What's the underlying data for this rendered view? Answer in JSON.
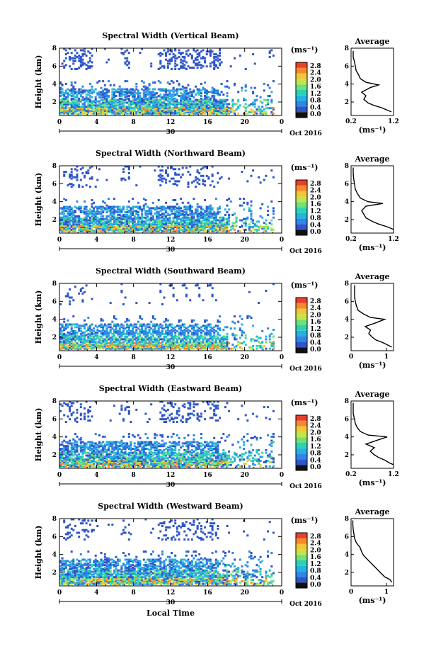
{
  "figure": {
    "ylabel": "Height (km)",
    "xlabel": "Local Time",
    "date_label": "Oct 2016",
    "day_label": "30",
    "colorbar_unit": "(ms⁻¹)",
    "avg_unit": "(ms⁻¹)",
    "avg_title": "Average"
  },
  "chart_data": [
    {
      "type": "heatmap",
      "title": "Spectral Width (Vertical Beam)",
      "xlim": [
        0,
        24
      ],
      "ylim": [
        0.5,
        8
      ],
      "xticks": [
        "0",
        "4",
        "8",
        "12",
        "16",
        "20",
        "0"
      ],
      "yticks": [
        "2",
        "4",
        "6",
        "8"
      ],
      "colorbar_ticks": [
        "2.8",
        "2.4",
        "2.0",
        "1.6",
        "1.2",
        "0.8",
        "0.4",
        "0.0"
      ],
      "average": {
        "xlim": [
          0.2,
          1.2
        ],
        "xticks": [
          "0.2",
          "1.2"
        ],
        "yticks": [
          "2",
          "4",
          "6",
          "8"
        ],
        "profile": [
          [
            1.15,
            0.9
          ],
          [
            1.05,
            1.1
          ],
          [
            0.9,
            1.4
          ],
          [
            0.75,
            1.6
          ],
          [
            0.6,
            1.9
          ],
          [
            0.5,
            2.3
          ],
          [
            0.55,
            2.7
          ],
          [
            0.45,
            3.1
          ],
          [
            0.65,
            3.6
          ],
          [
            0.85,
            3.9
          ],
          [
            0.55,
            4.2
          ],
          [
            0.42,
            4.6
          ],
          [
            0.38,
            5.0
          ],
          [
            0.32,
            5.5
          ],
          [
            0.3,
            6.0
          ],
          [
            0.28,
            6.5
          ],
          [
            0.25,
            7.0
          ],
          [
            0.25,
            7.7
          ]
        ]
      },
      "seed": 11,
      "upper_density": 0.55
    },
    {
      "type": "heatmap",
      "title": "Spectral Width (Northward Beam)",
      "xlim": [
        0,
        24
      ],
      "ylim": [
        0.5,
        8
      ],
      "xticks": [
        "0",
        "4",
        "8",
        "12",
        "16",
        "20",
        "0"
      ],
      "yticks": [
        "2",
        "4",
        "6",
        "8"
      ],
      "colorbar_ticks": [
        "2.8",
        "2.4",
        "2.0",
        "1.6",
        "1.2",
        "0.8",
        "0.4",
        "0.0"
      ],
      "average": {
        "xlim": [
          0.2,
          1.2
        ],
        "xticks": [
          "0.2",
          "1.2"
        ],
        "yticks": [
          "2",
          "4",
          "6",
          "8"
        ],
        "profile": [
          [
            1.2,
            0.9
          ],
          [
            1.05,
            1.2
          ],
          [
            0.85,
            1.5
          ],
          [
            0.7,
            1.8
          ],
          [
            0.55,
            2.2
          ],
          [
            0.5,
            2.6
          ],
          [
            0.45,
            3.0
          ],
          [
            0.55,
            3.5
          ],
          [
            0.95,
            3.8
          ],
          [
            0.6,
            4.0
          ],
          [
            0.42,
            4.4
          ],
          [
            0.35,
            4.9
          ],
          [
            0.3,
            5.4
          ],
          [
            0.28,
            6.0
          ],
          [
            0.26,
            6.6
          ],
          [
            0.25,
            7.2
          ],
          [
            0.25,
            7.8
          ]
        ]
      },
      "seed": 23,
      "upper_density": 0.35
    },
    {
      "type": "heatmap",
      "title": "Spectral Width (Southward Beam)",
      "xlim": [
        0,
        24
      ],
      "ylim": [
        0.5,
        8
      ],
      "xticks": [
        "0",
        "4",
        "8",
        "12",
        "16",
        "20",
        "0"
      ],
      "yticks": [
        "2",
        "4",
        "6",
        "8"
      ],
      "colorbar_ticks": [
        "2.8",
        "2.4",
        "2.0",
        "1.6",
        "1.2",
        "0.8",
        "0.4",
        "0.0"
      ],
      "average": {
        "xlim": [
          0,
          1.2
        ],
        "xticks": [
          "0",
          "1"
        ],
        "yticks": [
          "2",
          "4",
          "6",
          "8"
        ],
        "profile": [
          [
            1.15,
            0.9
          ],
          [
            1.05,
            1.1
          ],
          [
            0.9,
            1.4
          ],
          [
            0.7,
            1.7
          ],
          [
            0.6,
            2.0
          ],
          [
            0.5,
            2.4
          ],
          [
            0.55,
            2.8
          ],
          [
            0.4,
            3.2
          ],
          [
            0.7,
            3.6
          ],
          [
            0.95,
            4.0
          ],
          [
            0.55,
            4.2
          ],
          [
            0.35,
            4.6
          ],
          [
            0.2,
            5.0
          ],
          [
            0.15,
            5.5
          ],
          [
            0.12,
            6.0
          ],
          [
            0.1,
            6.5
          ],
          [
            0.1,
            7.2
          ],
          [
            0.1,
            7.8
          ]
        ]
      },
      "seed": 37,
      "upper_density": 0.25
    },
    {
      "type": "heatmap",
      "title": "Spectral Width (Eastward Beam)",
      "xlim": [
        0,
        24
      ],
      "ylim": [
        0.5,
        8
      ],
      "xticks": [
        "0",
        "4",
        "8",
        "12",
        "16",
        "20",
        "0"
      ],
      "yticks": [
        "2",
        "4",
        "6",
        "8"
      ],
      "colorbar_ticks": [
        "2.8",
        "2.4",
        "2.0",
        "1.6",
        "1.2",
        "0.8",
        "0.4",
        "0.0"
      ],
      "average": {
        "xlim": [
          0.2,
          1.2
        ],
        "xticks": [
          "0.2",
          "1.2"
        ],
        "yticks": [
          "2",
          "4",
          "6",
          "8"
        ],
        "profile": [
          [
            1.2,
            0.9
          ],
          [
            1.1,
            1.1
          ],
          [
            1.0,
            1.4
          ],
          [
            0.85,
            1.7
          ],
          [
            0.75,
            2.0
          ],
          [
            0.65,
            2.4
          ],
          [
            0.75,
            2.8
          ],
          [
            0.55,
            3.2
          ],
          [
            0.8,
            3.6
          ],
          [
            1.05,
            4.0
          ],
          [
            0.6,
            4.2
          ],
          [
            0.42,
            4.6
          ],
          [
            0.35,
            5.0
          ],
          [
            0.3,
            5.5
          ],
          [
            0.28,
            6.0
          ],
          [
            0.25,
            6.6
          ],
          [
            0.25,
            7.2
          ],
          [
            0.25,
            7.8
          ]
        ]
      },
      "seed": 51,
      "upper_density": 0.35
    },
    {
      "type": "heatmap",
      "title": "Spectral Width (Westward Beam)",
      "xlim": [
        0,
        24
      ],
      "ylim": [
        0.5,
        8
      ],
      "xticks": [
        "0",
        "4",
        "8",
        "12",
        "16",
        "20",
        "0"
      ],
      "yticks": [
        "2",
        "4",
        "6",
        "8"
      ],
      "colorbar_ticks": [
        "2.8",
        "2.4",
        "2.0",
        "1.6",
        "1.2",
        "0.8",
        "0.4",
        "0.0"
      ],
      "average": {
        "xlim": [
          0,
          1.2
        ],
        "xticks": [
          "0",
          "1"
        ],
        "yticks": [
          "2",
          "4",
          "6",
          "8"
        ],
        "profile": [
          [
            1.15,
            0.9
          ],
          [
            1.1,
            1.2
          ],
          [
            0.95,
            1.5
          ],
          [
            0.85,
            1.9
          ],
          [
            0.75,
            2.3
          ],
          [
            0.65,
            2.7
          ],
          [
            0.55,
            3.1
          ],
          [
            0.45,
            3.5
          ],
          [
            0.35,
            3.9
          ],
          [
            0.3,
            4.3
          ],
          [
            0.25,
            4.8
          ],
          [
            0.15,
            5.3
          ],
          [
            0.1,
            5.8
          ],
          [
            0.08,
            6.3
          ],
          [
            0.06,
            6.8
          ],
          [
            0.05,
            7.3
          ],
          [
            0.05,
            7.8
          ]
        ]
      },
      "seed": 67,
      "upper_density": 0.3
    }
  ]
}
